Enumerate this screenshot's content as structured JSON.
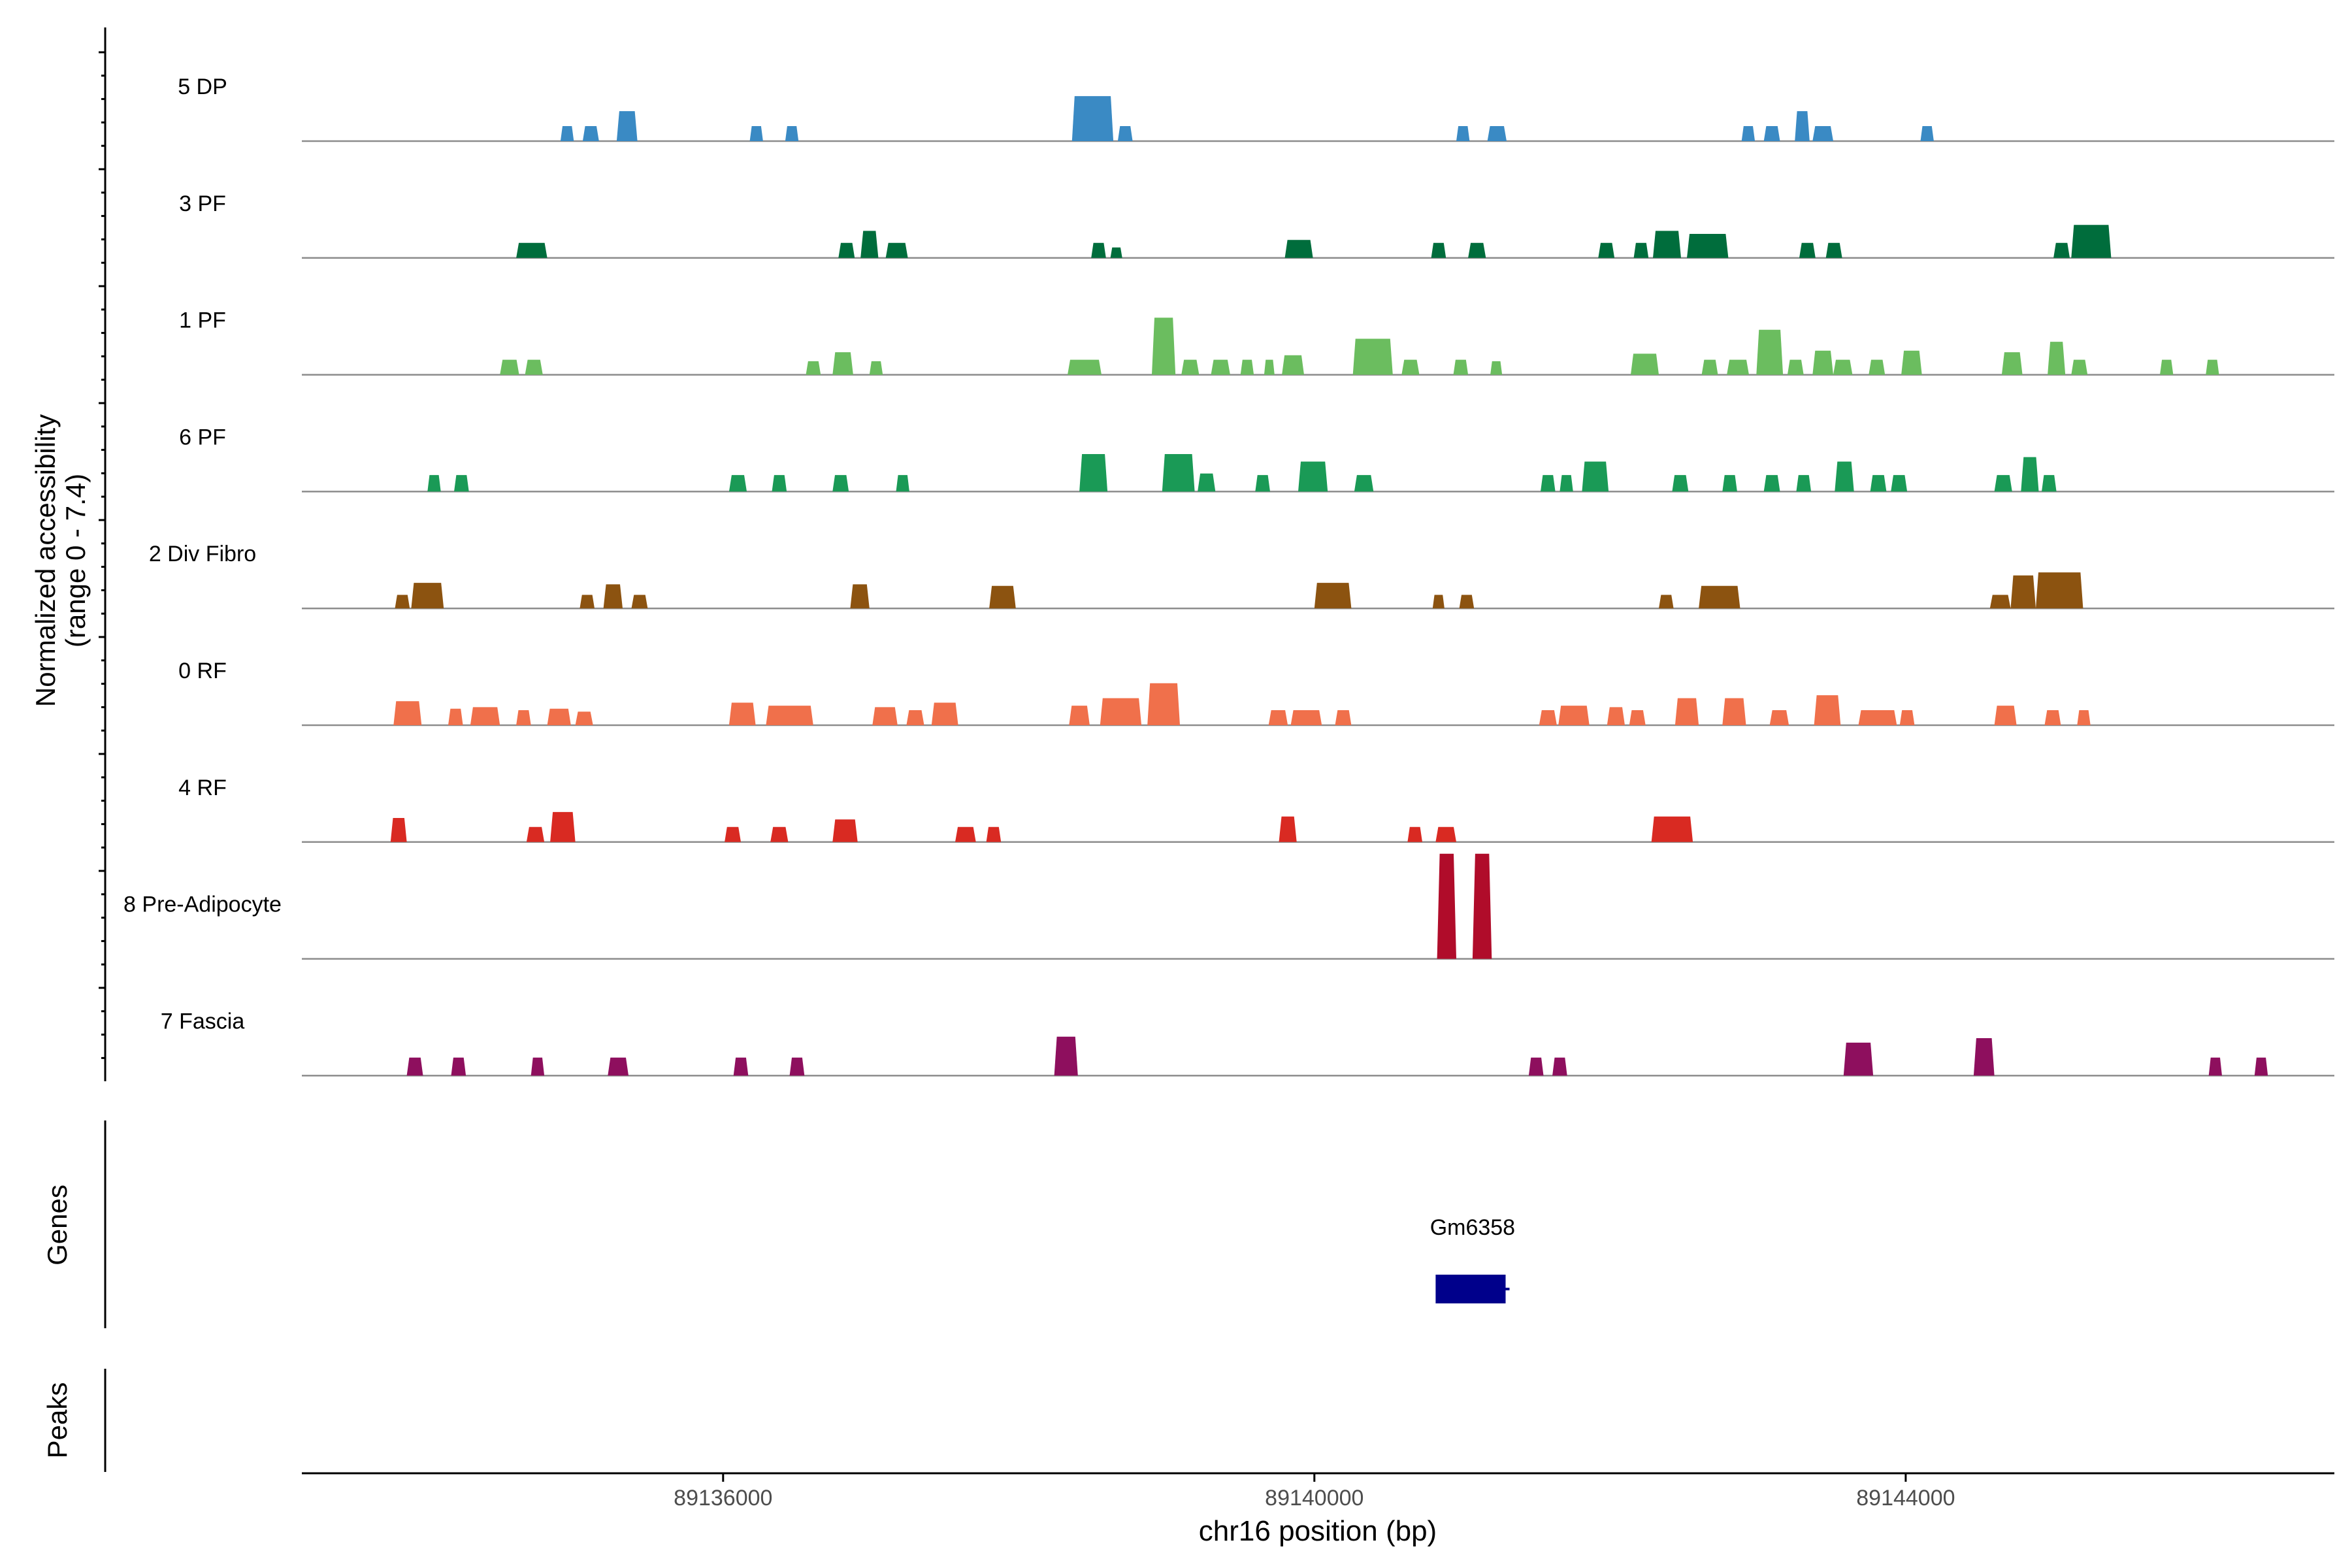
{
  "chart_data": {
    "type": "area",
    "title": "",
    "ylabel_lines": [
      "Normalized accessibility",
      "(range 0 - 7.4)"
    ],
    "xlabel": "chr16 position (bp)",
    "xlim": [
      89133150,
      89146900
    ],
    "ylim": [
      0,
      7.4
    ],
    "x_ticks": [
      89136000,
      89140000,
      89144000
    ],
    "x_tick_labels": [
      "89136000",
      "89140000",
      "89144000"
    ],
    "tracks": [
      {
        "name": "5 DP",
        "color": "#3a8ac4",
        "peaks": [
          [
            89134900,
            89134990,
            1.0
          ],
          [
            89135050,
            89135160,
            1.0
          ],
          [
            89135280,
            89135420,
            2.0
          ],
          [
            89136180,
            89136270,
            1.0
          ],
          [
            89136420,
            89136510,
            1.0
          ],
          [
            89138360,
            89138640,
            3.0
          ],
          [
            89138670,
            89138770,
            1.0
          ],
          [
            89140960,
            89141050,
            1.0
          ],
          [
            89141170,
            89141300,
            1.0
          ],
          [
            89142890,
            89142980,
            1.0
          ],
          [
            89143040,
            89143150,
            1.0
          ],
          [
            89143250,
            89143350,
            2.0
          ],
          [
            89143370,
            89143510,
            1.0
          ],
          [
            89144100,
            89144190,
            1.0
          ]
        ]
      },
      {
        "name": "3 PF",
        "color": "#006d3c",
        "peaks": [
          [
            89134600,
            89134810,
            1.0
          ],
          [
            89136780,
            89136890,
            1.0
          ],
          [
            89136930,
            89137050,
            1.8
          ],
          [
            89137100,
            89137250,
            1.0
          ],
          [
            89138490,
            89138590,
            1.0
          ],
          [
            89138620,
            89138700,
            0.7
          ],
          [
            89139800,
            89139990,
            1.2
          ],
          [
            89140790,
            89140890,
            1.0
          ],
          [
            89141040,
            89141160,
            1.0
          ],
          [
            89141920,
            89142030,
            1.0
          ],
          [
            89142160,
            89142260,
            1.0
          ],
          [
            89142290,
            89142480,
            1.8
          ],
          [
            89142520,
            89142800,
            1.6
          ],
          [
            89143280,
            89143390,
            1.0
          ],
          [
            89143460,
            89143570,
            1.0
          ],
          [
            89145000,
            89145110,
            1.0
          ],
          [
            89145120,
            89145390,
            2.2
          ]
        ]
      },
      {
        "name": "1 PF",
        "color": "#6bbd5f",
        "peaks": [
          [
            89134490,
            89134620,
            1.0
          ],
          [
            89134660,
            89134780,
            1.0
          ],
          [
            89136560,
            89136660,
            0.9
          ],
          [
            89136740,
            89136880,
            1.5
          ],
          [
            89136990,
            89137080,
            0.9
          ],
          [
            89138330,
            89138560,
            1.0
          ],
          [
            89138900,
            89139060,
            3.8
          ],
          [
            89139100,
            89139220,
            1.0
          ],
          [
            89139300,
            89139430,
            1.0
          ],
          [
            89139500,
            89139590,
            1.0
          ],
          [
            89139660,
            89139730,
            1.0
          ],
          [
            89139780,
            89139930,
            1.3
          ],
          [
            89140260,
            89140530,
            2.4
          ],
          [
            89140590,
            89140710,
            1.0
          ],
          [
            89140940,
            89141040,
            1.0
          ],
          [
            89141190,
            89141270,
            0.9
          ],
          [
            89142140,
            89142330,
            1.4
          ],
          [
            89142620,
            89142730,
            1.0
          ],
          [
            89142790,
            89142940,
            1.0
          ],
          [
            89142990,
            89143170,
            3.0
          ],
          [
            89143200,
            89143310,
            1.0
          ],
          [
            89143370,
            89143510,
            1.6
          ],
          [
            89143510,
            89143640,
            1.0
          ],
          [
            89143750,
            89143860,
            1.0
          ],
          [
            89143970,
            89144110,
            1.6
          ],
          [
            89144650,
            89144790,
            1.5
          ],
          [
            89144960,
            89145080,
            2.2
          ],
          [
            89145120,
            89145230,
            1.0
          ],
          [
            89145720,
            89145810,
            1.0
          ],
          [
            89146030,
            89146120,
            1.0
          ]
        ]
      },
      {
        "name": "6 PF",
        "color": "#1a9a56",
        "peaks": [
          [
            89134000,
            89134090,
            1.1
          ],
          [
            89134180,
            89134280,
            1.1
          ],
          [
            89136040,
            89136160,
            1.1
          ],
          [
            89136330,
            89136430,
            1.1
          ],
          [
            89136740,
            89136850,
            1.1
          ],
          [
            89137170,
            89137260,
            1.1
          ],
          [
            89138410,
            89138600,
            2.5
          ],
          [
            89138970,
            89139190,
            2.5
          ],
          [
            89139210,
            89139330,
            1.2
          ],
          [
            89139600,
            89139700,
            1.1
          ],
          [
            89139890,
            89140090,
            2.0
          ],
          [
            89140270,
            89140400,
            1.1
          ],
          [
            89141530,
            89141630,
            1.1
          ],
          [
            89141660,
            89141750,
            1.1
          ],
          [
            89141810,
            89141990,
            2.0
          ],
          [
            89142420,
            89142530,
            1.1
          ],
          [
            89142760,
            89142860,
            1.1
          ],
          [
            89143040,
            89143150,
            1.1
          ],
          [
            89143260,
            89143360,
            1.1
          ],
          [
            89143520,
            89143650,
            2.0
          ],
          [
            89143760,
            89143870,
            1.1
          ],
          [
            89143900,
            89144010,
            1.1
          ],
          [
            89144600,
            89144720,
            1.1
          ],
          [
            89144780,
            89144900,
            2.3
          ],
          [
            89144920,
            89145020,
            1.1
          ]
        ]
      },
      {
        "name": "2 Div Fibro",
        "color": "#8c5310",
        "peaks": [
          [
            89133780,
            89133880,
            0.9
          ],
          [
            89133890,
            89134110,
            1.7
          ],
          [
            89135030,
            89135130,
            0.9
          ],
          [
            89135190,
            89135320,
            1.6
          ],
          [
            89135380,
            89135490,
            0.9
          ],
          [
            89136860,
            89136990,
            1.6
          ],
          [
            89137800,
            89137980,
            1.5
          ],
          [
            89140000,
            89140250,
            1.7
          ],
          [
            89140800,
            89140880,
            0.9
          ],
          [
            89140980,
            89141080,
            0.9
          ],
          [
            89142330,
            89142430,
            0.9
          ],
          [
            89142600,
            89142880,
            1.5
          ],
          [
            89144570,
            89144710,
            0.9
          ],
          [
            89144710,
            89144880,
            2.2
          ],
          [
            89144880,
            89145200,
            2.4
          ]
        ]
      },
      {
        "name": "0 RF",
        "color": "#f0704b",
        "peaks": [
          [
            89133770,
            89133960,
            1.6
          ],
          [
            89134140,
            89134240,
            1.1
          ],
          [
            89134290,
            89134490,
            1.2
          ],
          [
            89134600,
            89134700,
            1.0
          ],
          [
            89134810,
            89134970,
            1.1
          ],
          [
            89135000,
            89135120,
            0.9
          ],
          [
            89136040,
            89136220,
            1.5
          ],
          [
            89136290,
            89136610,
            1.3
          ],
          [
            89137010,
            89137180,
            1.2
          ],
          [
            89137240,
            89137360,
            1.0
          ],
          [
            89137410,
            89137590,
            1.5
          ],
          [
            89138340,
            89138480,
            1.3
          ],
          [
            89138550,
            89138830,
            1.8
          ],
          [
            89138870,
            89139090,
            2.8
          ],
          [
            89139690,
            89139820,
            1.0
          ],
          [
            89139840,
            89140050,
            1.0
          ],
          [
            89140140,
            89140250,
            1.0
          ],
          [
            89141520,
            89141640,
            1.0
          ],
          [
            89141650,
            89141860,
            1.3
          ],
          [
            89141980,
            89142100,
            1.2
          ],
          [
            89142130,
            89142240,
            1.0
          ],
          [
            89142440,
            89142600,
            1.8
          ],
          [
            89142760,
            89142920,
            1.8
          ],
          [
            89143080,
            89143210,
            1.0
          ],
          [
            89143380,
            89143560,
            2.0
          ],
          [
            89143680,
            89143940,
            1.0
          ],
          [
            89143960,
            89144060,
            1.0
          ],
          [
            89144600,
            89144750,
            1.3
          ],
          [
            89144940,
            89145050,
            1.0
          ],
          [
            89145160,
            89145250,
            1.0
          ]
        ]
      },
      {
        "name": "4 RF",
        "color": "#d92a22",
        "peaks": [
          [
            89133750,
            89133860,
            1.6
          ],
          [
            89134670,
            89134790,
            1.0
          ],
          [
            89134830,
            89135000,
            2.0
          ],
          [
            89136010,
            89136120,
            1.0
          ],
          [
            89136320,
            89136440,
            1.0
          ],
          [
            89136740,
            89136910,
            1.5
          ],
          [
            89137570,
            89137710,
            1.0
          ],
          [
            89137780,
            89137880,
            1.0
          ],
          [
            89139760,
            89139880,
            1.7
          ],
          [
            89140630,
            89140730,
            1.0
          ],
          [
            89140820,
            89140960,
            1.0
          ],
          [
            89142280,
            89142560,
            1.7
          ]
        ]
      },
      {
        "name": "8 Pre-Adipocyte",
        "color": "#b00c2a",
        "peaks": [
          [
            89140830,
            89140960,
            7.0
          ],
          [
            89141070,
            89141200,
            7.0
          ]
        ]
      },
      {
        "name": "7 Fascia",
        "color": "#8e0f5e",
        "peaks": [
          [
            89133860,
            89133970,
            1.2
          ],
          [
            89134160,
            89134260,
            1.2
          ],
          [
            89134700,
            89134790,
            1.2
          ],
          [
            89135220,
            89135360,
            1.2
          ],
          [
            89136070,
            89136170,
            1.2
          ],
          [
            89136450,
            89136550,
            1.2
          ],
          [
            89138240,
            89138400,
            2.6
          ],
          [
            89141450,
            89141550,
            1.2
          ],
          [
            89141610,
            89141710,
            1.2
          ],
          [
            89143580,
            89143780,
            2.2
          ],
          [
            89144460,
            89144600,
            2.5
          ],
          [
            89146050,
            89146140,
            1.2
          ],
          [
            89146360,
            89146450,
            1.2
          ]
        ]
      }
    ],
    "genes": [
      {
        "name": "Gm6358",
        "start": 89140820,
        "end": 89141320,
        "strand": "+"
      }
    ],
    "annotation_labels": [
      "Genes",
      "Peaks"
    ]
  }
}
